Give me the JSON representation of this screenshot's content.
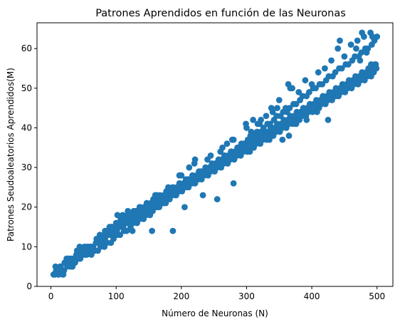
{
  "chart_data": {
    "type": "scatter",
    "title": "Patrones Aprendidos en función de las Neuronas",
    "xlabel": "Número de Neuronas (N)",
    "ylabel": "Patrones Seudoaleatorios Aprendidos(M)",
    "xlim": [
      -21.35,
      524.35
    ],
    "ylim": [
      0.0,
      66.5
    ],
    "xticks": [
      0,
      100,
      200,
      300,
      400,
      500
    ],
    "yticks": [
      0,
      10,
      20,
      30,
      40,
      50,
      60
    ],
    "grid": false,
    "marker_color": "#1f77b4",
    "points": [
      [
        5,
        3
      ],
      [
        7,
        5
      ],
      [
        9,
        4
      ],
      [
        11,
        3
      ],
      [
        13,
        4
      ],
      [
        15,
        5
      ],
      [
        17,
        4
      ],
      [
        19,
        3
      ],
      [
        21,
        6
      ],
      [
        23,
        6
      ],
      [
        25,
        5
      ],
      [
        27,
        7
      ],
      [
        29,
        6
      ],
      [
        31,
        7
      ],
      [
        33,
        5
      ],
      [
        35,
        7
      ],
      [
        37,
        6
      ],
      [
        39,
        8
      ],
      [
        41,
        7
      ],
      [
        43,
        8
      ],
      [
        45,
        7
      ],
      [
        47,
        9
      ],
      [
        49,
        8
      ],
      [
        51,
        10
      ],
      [
        53,
        9
      ],
      [
        55,
        8
      ],
      [
        57,
        10
      ],
      [
        59,
        9
      ],
      [
        61,
        10
      ],
      [
        63,
        9
      ],
      [
        65,
        10
      ],
      [
        67,
        9
      ],
      [
        69,
        11
      ],
      [
        71,
        12
      ],
      [
        73,
        11
      ],
      [
        75,
        13
      ],
      [
        77,
        12
      ],
      [
        79,
        11
      ],
      [
        81,
        13
      ],
      [
        83,
        12
      ],
      [
        85,
        14
      ],
      [
        87,
        13
      ],
      [
        89,
        14
      ],
      [
        91,
        13
      ],
      [
        93,
        15
      ],
      [
        95,
        14
      ],
      [
        97,
        13
      ],
      [
        99,
        15
      ],
      [
        101,
        14
      ],
      [
        103,
        16
      ],
      [
        105,
        15
      ],
      [
        107,
        17
      ],
      [
        109,
        16
      ],
      [
        111,
        15
      ],
      [
        113,
        17
      ],
      [
        115,
        16
      ],
      [
        117,
        18
      ],
      [
        119,
        17
      ],
      [
        121,
        16
      ],
      [
        123,
        18
      ],
      [
        125,
        17
      ],
      [
        127,
        19
      ],
      [
        129,
        18
      ],
      [
        131,
        17
      ],
      [
        133,
        19
      ],
      [
        135,
        18
      ],
      [
        137,
        20
      ],
      [
        139,
        19
      ],
      [
        141,
        18
      ],
      [
        143,
        20
      ],
      [
        145,
        19
      ],
      [
        147,
        21
      ],
      [
        149,
        20
      ],
      [
        151,
        19
      ],
      [
        153,
        21
      ],
      [
        155,
        20
      ],
      [
        157,
        22
      ],
      [
        159,
        21
      ],
      [
        161,
        20
      ],
      [
        163,
        22
      ],
      [
        165,
        21
      ],
      [
        167,
        23
      ],
      [
        169,
        22
      ],
      [
        171,
        21
      ],
      [
        173,
        23
      ],
      [
        175,
        22
      ],
      [
        177,
        24
      ],
      [
        179,
        23
      ],
      [
        181,
        22
      ],
      [
        183,
        24
      ],
      [
        185,
        23
      ],
      [
        187,
        25
      ],
      [
        189,
        24
      ],
      [
        191,
        23
      ],
      [
        193,
        25
      ],
      [
        195,
        24
      ],
      [
        197,
        26
      ],
      [
        199,
        25
      ],
      [
        201,
        24
      ],
      [
        203,
        26
      ],
      [
        205,
        25
      ],
      [
        207,
        27
      ],
      [
        209,
        26
      ],
      [
        211,
        25
      ],
      [
        213,
        27
      ],
      [
        215,
        26
      ],
      [
        217,
        28
      ],
      [
        219,
        27
      ],
      [
        221,
        26
      ],
      [
        223,
        28
      ],
      [
        225,
        27
      ],
      [
        227,
        29
      ],
      [
        229,
        28
      ],
      [
        231,
        27
      ],
      [
        233,
        29
      ],
      [
        235,
        28
      ],
      [
        237,
        30
      ],
      [
        239,
        29
      ],
      [
        241,
        28
      ],
      [
        243,
        30
      ],
      [
        245,
        29
      ],
      [
        247,
        31
      ],
      [
        249,
        30
      ],
      [
        251,
        29
      ],
      [
        253,
        31
      ],
      [
        255,
        30
      ],
      [
        257,
        32
      ],
      [
        259,
        31
      ],
      [
        261,
        30
      ],
      [
        263,
        32
      ],
      [
        265,
        31
      ],
      [
        267,
        33
      ],
      [
        269,
        32
      ],
      [
        271,
        31
      ],
      [
        273,
        33
      ],
      [
        275,
        32
      ],
      [
        277,
        34
      ],
      [
        279,
        33
      ],
      [
        281,
        32
      ],
      [
        283,
        34
      ],
      [
        285,
        33
      ],
      [
        287,
        35
      ],
      [
        289,
        34
      ],
      [
        291,
        33
      ],
      [
        293,
        35
      ],
      [
        295,
        34
      ],
      [
        297,
        36
      ],
      [
        299,
        35
      ],
      [
        301,
        34
      ],
      [
        303,
        36
      ],
      [
        305,
        35
      ],
      [
        307,
        37
      ],
      [
        309,
        36
      ],
      [
        311,
        35
      ],
      [
        313,
        37
      ],
      [
        315,
        36
      ],
      [
        317,
        38
      ],
      [
        319,
        37
      ],
      [
        321,
        36
      ],
      [
        323,
        38
      ],
      [
        325,
        37
      ],
      [
        327,
        39
      ],
      [
        329,
        38
      ],
      [
        331,
        37
      ],
      [
        333,
        39
      ],
      [
        335,
        38
      ],
      [
        337,
        40
      ],
      [
        339,
        39
      ],
      [
        341,
        38
      ],
      [
        343,
        40
      ],
      [
        345,
        39
      ],
      [
        347,
        41
      ],
      [
        349,
        40
      ],
      [
        351,
        39
      ],
      [
        353,
        41
      ],
      [
        355,
        40
      ],
      [
        357,
        42
      ],
      [
        359,
        41
      ],
      [
        361,
        40
      ],
      [
        363,
        42
      ],
      [
        365,
        41
      ],
      [
        367,
        43
      ],
      [
        369,
        42
      ],
      [
        371,
        41
      ],
      [
        373,
        43
      ],
      [
        375,
        42
      ],
      [
        377,
        44
      ],
      [
        379,
        43
      ],
      [
        381,
        42
      ],
      [
        383,
        44
      ],
      [
        385,
        43
      ],
      [
        387,
        45
      ],
      [
        389,
        44
      ],
      [
        391,
        43
      ],
      [
        393,
        45
      ],
      [
        395,
        44
      ],
      [
        397,
        46
      ],
      [
        399,
        45
      ],
      [
        401,
        44
      ],
      [
        403,
        46
      ],
      [
        405,
        45
      ],
      [
        407,
        47
      ],
      [
        409,
        46
      ],
      [
        411,
        45
      ],
      [
        413,
        47
      ],
      [
        415,
        46
      ],
      [
        417,
        48
      ],
      [
        419,
        47
      ],
      [
        421,
        46
      ],
      [
        423,
        48
      ],
      [
        425,
        47
      ],
      [
        427,
        49
      ],
      [
        429,
        48
      ],
      [
        431,
        47
      ],
      [
        433,
        49
      ],
      [
        435,
        48
      ],
      [
        437,
        50
      ],
      [
        439,
        49
      ],
      [
        441,
        48
      ],
      [
        443,
        50
      ],
      [
        445,
        49
      ],
      [
        447,
        51
      ],
      [
        449,
        50
      ],
      [
        451,
        49
      ],
      [
        453,
        51
      ],
      [
        455,
        50
      ],
      [
        457,
        52
      ],
      [
        459,
        51
      ],
      [
        461,
        50
      ],
      [
        463,
        52
      ],
      [
        465,
        51
      ],
      [
        467,
        53
      ],
      [
        469,
        52
      ],
      [
        471,
        51
      ],
      [
        473,
        53
      ],
      [
        475,
        52
      ],
      [
        477,
        54
      ],
      [
        479,
        53
      ],
      [
        481,
        52
      ],
      [
        483,
        54
      ],
      [
        485,
        53
      ],
      [
        487,
        55
      ],
      [
        489,
        54
      ],
      [
        491,
        53
      ],
      [
        493,
        55
      ],
      [
        495,
        54
      ],
      [
        497,
        56
      ],
      [
        499,
        55
      ],
      [
        4,
        3
      ],
      [
        12,
        3
      ],
      [
        18,
        3
      ],
      [
        22,
        6
      ],
      [
        26,
        6
      ],
      [
        32,
        6
      ],
      [
        36,
        6
      ],
      [
        42,
        7
      ],
      [
        46,
        8
      ],
      [
        52,
        8
      ],
      [
        56,
        9
      ],
      [
        62,
        8
      ],
      [
        66,
        9
      ],
      [
        72,
        9
      ],
      [
        76,
        10
      ],
      [
        82,
        10
      ],
      [
        86,
        11
      ],
      [
        92,
        11
      ],
      [
        96,
        12
      ],
      [
        102,
        13
      ],
      [
        106,
        13
      ],
      [
        112,
        14
      ],
      [
        116,
        14
      ],
      [
        122,
        15
      ],
      [
        126,
        16
      ],
      [
        132,
        16
      ],
      [
        136,
        17
      ],
      [
        142,
        17
      ],
      [
        146,
        18
      ],
      [
        152,
        18
      ],
      [
        156,
        19
      ],
      [
        162,
        20
      ],
      [
        166,
        20
      ],
      [
        172,
        21
      ],
      [
        176,
        21
      ],
      [
        182,
        22
      ],
      [
        186,
        23
      ],
      [
        192,
        23
      ],
      [
        196,
        24
      ],
      [
        202,
        25
      ],
      [
        206,
        25
      ],
      [
        212,
        26
      ],
      [
        216,
        26
      ],
      [
        222,
        27
      ],
      [
        226,
        27
      ],
      [
        232,
        28
      ],
      [
        236,
        29
      ],
      [
        242,
        29
      ],
      [
        246,
        30
      ],
      [
        252,
        31
      ],
      [
        256,
        31
      ],
      [
        262,
        32
      ],
      [
        266,
        33
      ],
      [
        272,
        33
      ],
      [
        276,
        34
      ],
      [
        282,
        34
      ],
      [
        286,
        35
      ],
      [
        292,
        36
      ],
      [
        296,
        36
      ],
      [
        302,
        37
      ],
      [
        306,
        38
      ],
      [
        312,
        38
      ],
      [
        316,
        39
      ],
      [
        322,
        39
      ],
      [
        326,
        40
      ],
      [
        332,
        41
      ],
      [
        336,
        41
      ],
      [
        342,
        42
      ],
      [
        346,
        43
      ],
      [
        352,
        43
      ],
      [
        356,
        44
      ],
      [
        362,
        44
      ],
      [
        366,
        45
      ],
      [
        372,
        46
      ],
      [
        376,
        46
      ],
      [
        382,
        47
      ],
      [
        386,
        48
      ],
      [
        392,
        48
      ],
      [
        396,
        49
      ],
      [
        402,
        50
      ],
      [
        406,
        50
      ],
      [
        412,
        51
      ],
      [
        416,
        51
      ],
      [
        422,
        52
      ],
      [
        426,
        53
      ],
      [
        432,
        53
      ],
      [
        436,
        54
      ],
      [
        442,
        55
      ],
      [
        446,
        55
      ],
      [
        452,
        56
      ],
      [
        456,
        56
      ],
      [
        462,
        57
      ],
      [
        466,
        58
      ],
      [
        472,
        58
      ],
      [
        476,
        59
      ],
      [
        482,
        60
      ],
      [
        486,
        60
      ],
      [
        492,
        61
      ],
      [
        496,
        62
      ],
      [
        20,
        4
      ],
      [
        30,
        5
      ],
      [
        40,
        9
      ],
      [
        50,
        9
      ],
      [
        60,
        10
      ],
      [
        70,
        12
      ],
      [
        80,
        11
      ],
      [
        90,
        15
      ],
      [
        100,
        16
      ],
      [
        110,
        18
      ],
      [
        120,
        16
      ],
      [
        130,
        19
      ],
      [
        140,
        19
      ],
      [
        150,
        20
      ],
      [
        160,
        23
      ],
      [
        170,
        22
      ],
      [
        180,
        25
      ],
      [
        190,
        24
      ],
      [
        200,
        28
      ],
      [
        210,
        27
      ],
      [
        220,
        31
      ],
      [
        230,
        29
      ],
      [
        240,
        32
      ],
      [
        250,
        30
      ],
      [
        260,
        34
      ],
      [
        270,
        36
      ],
      [
        280,
        37
      ],
      [
        290,
        35
      ],
      [
        300,
        40
      ],
      [
        310,
        42
      ],
      [
        320,
        41
      ],
      [
        330,
        43
      ],
      [
        340,
        44
      ],
      [
        350,
        47
      ],
      [
        360,
        45
      ],
      [
        370,
        50
      ],
      [
        380,
        49
      ],
      [
        390,
        52
      ],
      [
        400,
        51
      ],
      [
        410,
        54
      ],
      [
        420,
        55
      ],
      [
        430,
        57
      ],
      [
        440,
        60
      ],
      [
        450,
        58
      ],
      [
        460,
        61
      ],
      [
        470,
        62
      ],
      [
        480,
        63
      ],
      [
        490,
        64
      ],
      [
        500,
        63
      ],
      [
        125,
        14
      ],
      [
        155,
        14
      ],
      [
        187,
        14
      ],
      [
        205,
        20
      ],
      [
        233,
        23
      ],
      [
        255,
        22
      ],
      [
        280,
        26
      ],
      [
        305,
        34
      ],
      [
        335,
        37
      ],
      [
        355,
        37
      ],
      [
        365,
        38
      ],
      [
        376,
        41
      ],
      [
        392,
        42
      ],
      [
        408,
        44
      ],
      [
        425,
        42
      ],
      [
        437,
        48
      ],
      [
        474,
        57
      ],
      [
        491,
        56
      ],
      [
        498,
        56
      ],
      [
        484,
        59
      ],
      [
        468,
        60
      ],
      [
        443,
        62
      ],
      [
        477,
        64
      ],
      [
        493,
        63
      ],
      [
        364,
        51
      ],
      [
        367,
        50
      ],
      [
        347,
        45
      ],
      [
        338,
        45
      ],
      [
        322,
        42
      ],
      [
        317,
        41
      ],
      [
        307,
        39
      ],
      [
        299,
        41
      ],
      [
        278,
        37
      ],
      [
        263,
        35
      ],
      [
        245,
        33
      ],
      [
        221,
        32
      ],
      [
        212,
        30
      ],
      [
        197,
        28
      ],
      [
        178,
        24
      ],
      [
        162,
        23
      ],
      [
        147,
        21
      ],
      [
        136,
        20
      ],
      [
        118,
        19
      ],
      [
        102,
        18
      ],
      [
        94,
        15
      ],
      [
        83,
        14
      ],
      [
        64,
        10
      ],
      [
        54,
        10
      ],
      [
        44,
        10
      ],
      [
        34,
        7
      ],
      [
        24,
        7
      ],
      [
        14,
        5
      ],
      [
        6,
        3
      ],
      [
        8,
        4
      ]
    ]
  }
}
